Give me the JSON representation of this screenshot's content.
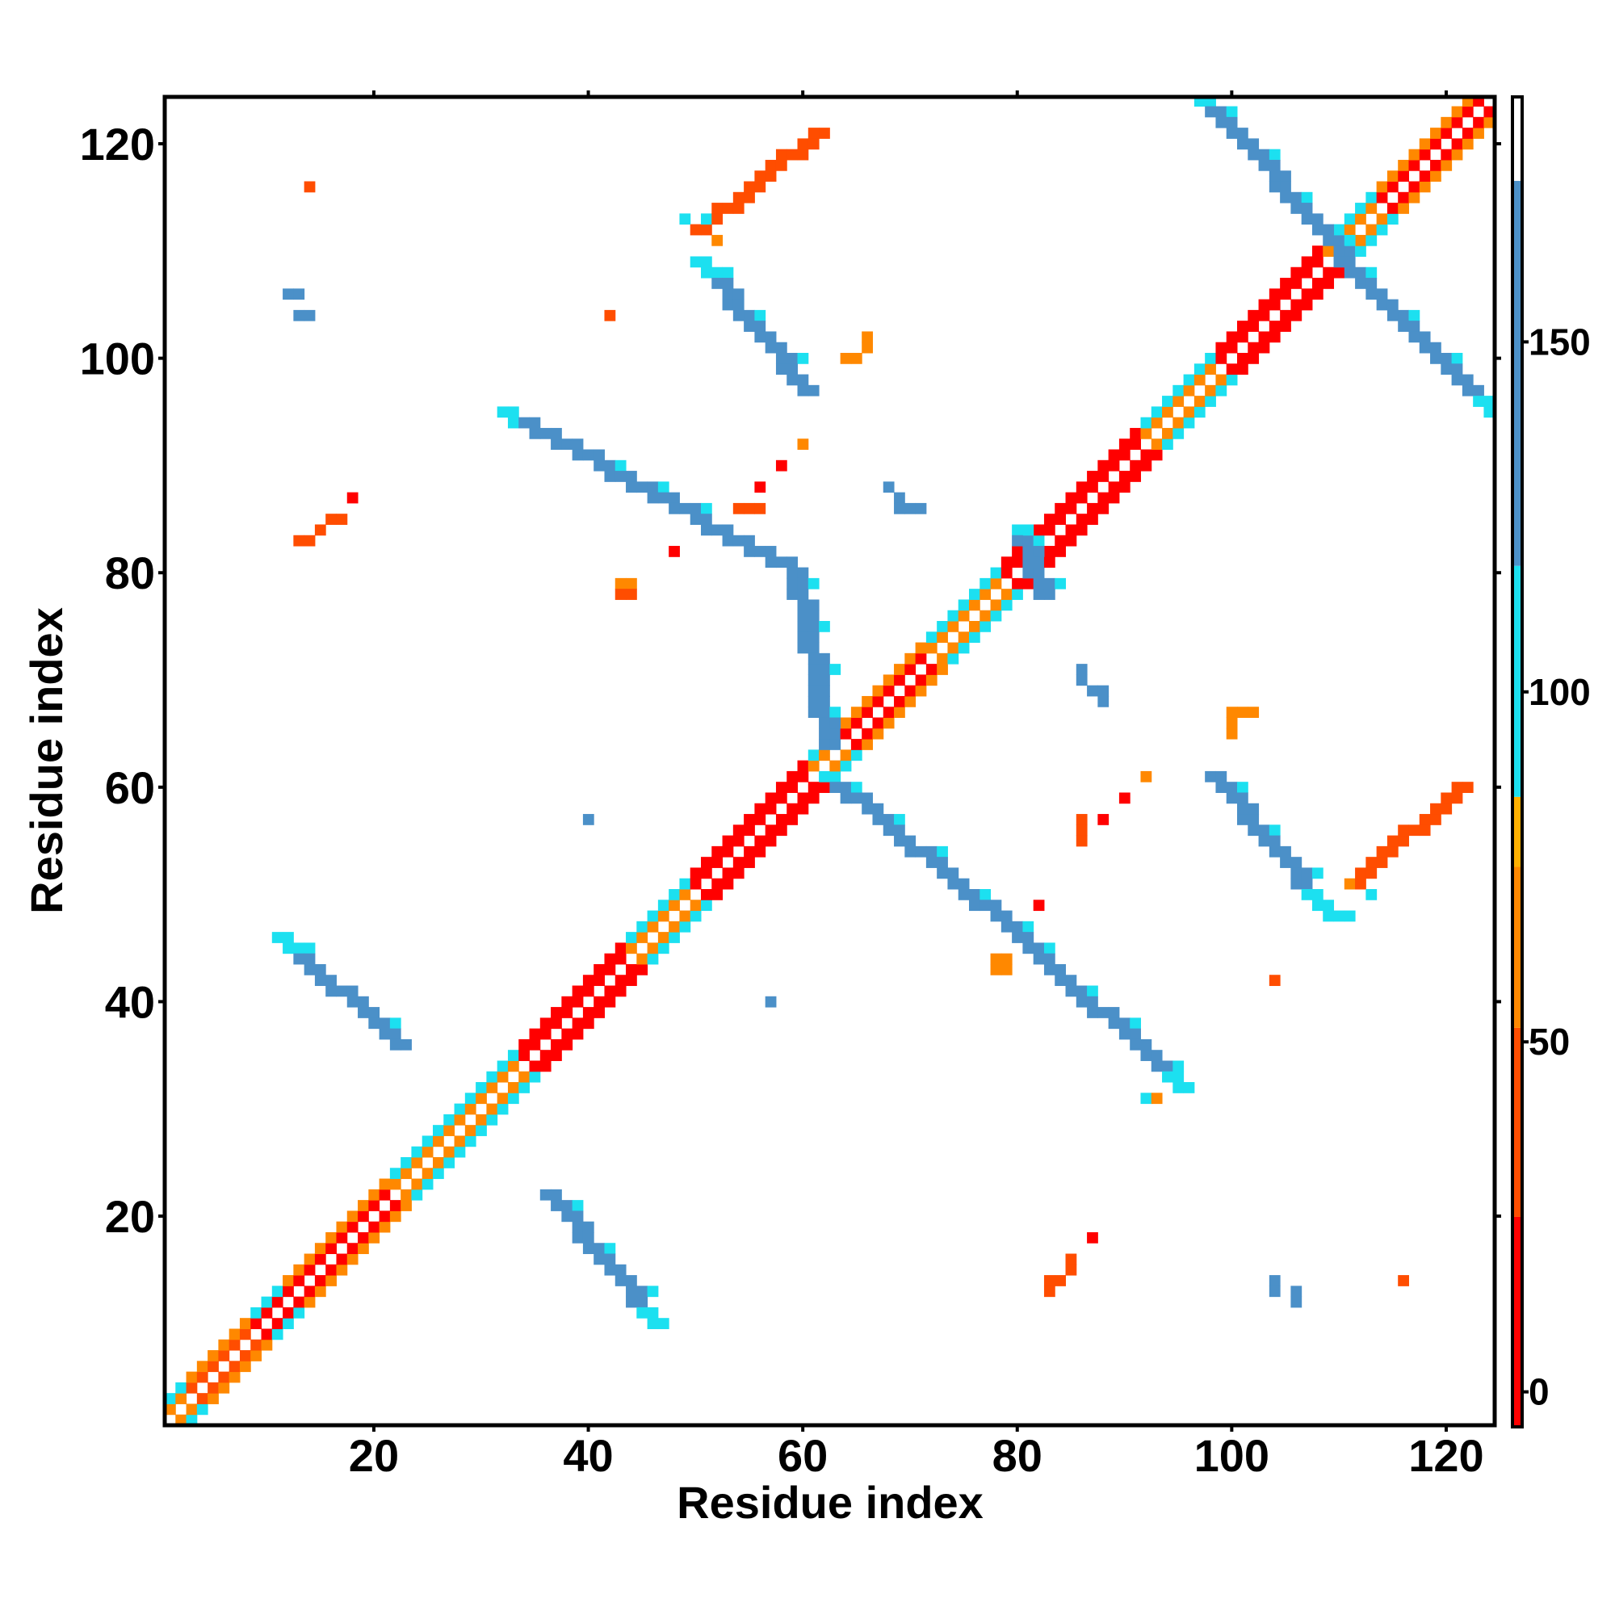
{
  "chart_data": {
    "type": "heatmap",
    "title": "",
    "xlabel": "Residue index",
    "ylabel": "Residue index",
    "xlim": [
      1,
      124
    ],
    "ylim": [
      1,
      124
    ],
    "x_ticks": [
      20,
      40,
      60,
      80,
      100,
      120
    ],
    "y_ticks": [
      20,
      40,
      60,
      80,
      100,
      120
    ],
    "grid": false,
    "legend": "none",
    "colorbar": {
      "placement": "right",
      "range": [
        -5,
        185
      ],
      "ticks": [
        0,
        50,
        100,
        150
      ],
      "bands": [
        {
          "from": -5,
          "to": 25,
          "color": "#ff0000"
        },
        {
          "from": 25,
          "to": 52,
          "color": "#ff4d00"
        },
        {
          "from": 52,
          "to": 75,
          "color": "#ff8800"
        },
        {
          "from": 75,
          "to": 85,
          "color": "#ffb000"
        },
        {
          "from": 85,
          "to": 118,
          "color": "#1ce0f0"
        },
        {
          "from": 118,
          "to": 173,
          "color": "#4b90c8"
        },
        {
          "from": 173,
          "to": 185,
          "color": "#ffffff"
        }
      ]
    },
    "category_colors": {
      "red": "#ff0000",
      "red_orange": "#ff4d00",
      "orange": "#ff8800",
      "cyan": "#1ce0f0",
      "blue": "#4b90c8"
    },
    "diagonal_band": {
      "range": [
        1,
        124
      ],
      "inner_offset": 1,
      "outer_offset": 2,
      "segments": [
        {
          "from": 1,
          "to": 3,
          "inner": "orange",
          "outer": "cyan"
        },
        {
          "from": 3,
          "to": 9,
          "inner": "red_orange",
          "outer": "orange"
        },
        {
          "from": 9,
          "to": 12,
          "inner": "red",
          "outer": "cyan"
        },
        {
          "from": 12,
          "to": 22,
          "inner": "red",
          "outer": "orange"
        },
        {
          "from": 22,
          "to": 34,
          "inner": "orange",
          "outer": "cyan"
        },
        {
          "from": 34,
          "to": 44,
          "inner": "red",
          "outer": "red"
        },
        {
          "from": 44,
          "to": 50,
          "inner": "orange",
          "outer": "cyan"
        },
        {
          "from": 50,
          "to": 61,
          "inner": "red",
          "outer": "red"
        },
        {
          "from": 61,
          "to": 64,
          "inner": "orange",
          "outer": "cyan"
        },
        {
          "from": 64,
          "to": 72,
          "inner": "red",
          "outer": "orange"
        },
        {
          "from": 72,
          "to": 79,
          "inner": "orange",
          "outer": "cyan"
        },
        {
          "from": 79,
          "to": 92,
          "inner": "red",
          "outer": "red"
        },
        {
          "from": 92,
          "to": 99,
          "inner": "orange",
          "outer": "cyan"
        },
        {
          "from": 99,
          "to": 109,
          "inner": "red",
          "outer": "red"
        },
        {
          "from": 109,
          "to": 114,
          "inner": "orange",
          "outer": "cyan"
        },
        {
          "from": 114,
          "to": 124,
          "inner": "red",
          "outer": "orange"
        }
      ]
    },
    "antiparallel_strands": [
      {
        "from": [
          11,
          46
        ],
        "to": [
          22,
          36
        ],
        "color": "blue",
        "width": 2,
        "cyan_start": 2
      },
      {
        "from": [
          36,
          22
        ],
        "to": [
          46,
          10
        ],
        "color": "blue",
        "width": 2,
        "cyan_end": 2
      },
      {
        "from": [
          32,
          95
        ],
        "to": [
          59,
          80
        ],
        "color": "blue",
        "width": 2,
        "cyan_start": 2
      },
      {
        "from": [
          59,
          80
        ],
        "to": [
          62,
          64
        ],
        "color": "blue",
        "width": 2
      },
      {
        "from": [
          50,
          109
        ],
        "to": [
          60,
          97
        ],
        "color": "blue",
        "width": 2,
        "cyan_start": 2
      },
      {
        "from": [
          62,
          61
        ],
        "to": [
          80,
          46
        ],
        "color": "blue",
        "width": 2,
        "cyan_start": 1
      },
      {
        "from": [
          80,
          46
        ],
        "to": [
          95,
          32
        ],
        "color": "blue",
        "width": 2,
        "cyan_end": 2
      },
      {
        "from": [
          80,
          84
        ],
        "to": [
          82,
          78
        ],
        "color": "blue",
        "width": 2,
        "cyan_start": 1
      },
      {
        "from": [
          97,
          124
        ],
        "to": [
          110,
          110
        ],
        "color": "blue",
        "width": 2,
        "cyan_start": 1
      },
      {
        "from": [
          110,
          109
        ],
        "to": [
          124,
          95
        ],
        "color": "blue",
        "width": 2,
        "cyan_end": 2
      },
      {
        "from": [
          98,
          61
        ],
        "to": [
          109,
          48
        ],
        "color": "blue",
        "width": 2,
        "cyan_end": 3
      }
    ],
    "parallel_strands": [
      {
        "from": [
          50,
          112
        ],
        "to": [
          61,
          121
        ],
        "color": "red_orange"
      },
      {
        "from": [
          111,
          51
        ],
        "to": [
          121,
          60
        ],
        "color": "red_orange"
      }
    ],
    "isolated_contacts": [
      {
        "x": 14,
        "y": 116,
        "color": "red_orange"
      },
      {
        "x": 12,
        "y": 106,
        "color": "blue"
      },
      {
        "x": 13,
        "y": 106,
        "color": "blue"
      },
      {
        "x": 13,
        "y": 104,
        "color": "blue"
      },
      {
        "x": 14,
        "y": 104,
        "color": "blue"
      },
      {
        "x": 18,
        "y": 87,
        "color": "red"
      },
      {
        "x": 16,
        "y": 85,
        "color": "red_orange"
      },
      {
        "x": 17,
        "y": 85,
        "color": "red_orange"
      },
      {
        "x": 15,
        "y": 84,
        "color": "red_orange"
      },
      {
        "x": 13,
        "y": 83,
        "color": "red_orange"
      },
      {
        "x": 14,
        "y": 83,
        "color": "red_orange"
      },
      {
        "x": 42,
        "y": 104,
        "color": "red_orange"
      },
      {
        "x": 51,
        "y": 113,
        "color": "cyan"
      },
      {
        "x": 49,
        "y": 113,
        "color": "cyan"
      },
      {
        "x": 52,
        "y": 111,
        "color": "orange"
      },
      {
        "x": 66,
        "y": 102,
        "color": "orange"
      },
      {
        "x": 66,
        "y": 101,
        "color": "orange"
      },
      {
        "x": 64,
        "y": 100,
        "color": "orange"
      },
      {
        "x": 65,
        "y": 100,
        "color": "orange"
      },
      {
        "x": 60,
        "y": 92,
        "color": "orange"
      },
      {
        "x": 58,
        "y": 90,
        "color": "red"
      },
      {
        "x": 56,
        "y": 88,
        "color": "red"
      },
      {
        "x": 54,
        "y": 86,
        "color": "red_orange"
      },
      {
        "x": 55,
        "y": 86,
        "color": "red_orange"
      },
      {
        "x": 56,
        "y": 86,
        "color": "red_orange"
      },
      {
        "x": 48,
        "y": 82,
        "color": "red"
      },
      {
        "x": 43,
        "y": 79,
        "color": "orange"
      },
      {
        "x": 44,
        "y": 79,
        "color": "orange"
      },
      {
        "x": 43,
        "y": 78,
        "color": "red_orange"
      },
      {
        "x": 44,
        "y": 78,
        "color": "red_orange"
      },
      {
        "x": 68,
        "y": 88,
        "color": "blue"
      },
      {
        "x": 69,
        "y": 87,
        "color": "blue"
      },
      {
        "x": 69,
        "y": 86,
        "color": "blue"
      },
      {
        "x": 70,
        "y": 86,
        "color": "blue"
      },
      {
        "x": 71,
        "y": 86,
        "color": "blue"
      },
      {
        "x": 86,
        "y": 71,
        "color": "blue"
      },
      {
        "x": 86,
        "y": 70,
        "color": "blue"
      },
      {
        "x": 87,
        "y": 69,
        "color": "blue"
      },
      {
        "x": 88,
        "y": 69,
        "color": "blue"
      },
      {
        "x": 88,
        "y": 68,
        "color": "blue"
      },
      {
        "x": 100,
        "y": 67,
        "color": "orange"
      },
      {
        "x": 101,
        "y": 67,
        "color": "orange"
      },
      {
        "x": 102,
        "y": 67,
        "color": "orange"
      },
      {
        "x": 100,
        "y": 66,
        "color": "orange"
      },
      {
        "x": 100,
        "y": 65,
        "color": "orange"
      },
      {
        "x": 92,
        "y": 61,
        "color": "orange"
      },
      {
        "x": 90,
        "y": 59,
        "color": "red"
      },
      {
        "x": 88,
        "y": 57,
        "color": "red"
      },
      {
        "x": 86,
        "y": 57,
        "color": "red_orange"
      },
      {
        "x": 86,
        "y": 56,
        "color": "red_orange"
      },
      {
        "x": 86,
        "y": 55,
        "color": "red_orange"
      },
      {
        "x": 82,
        "y": 49,
        "color": "red"
      },
      {
        "x": 40,
        "y": 57,
        "color": "blue"
      },
      {
        "x": 57,
        "y": 40,
        "color": "blue"
      },
      {
        "x": 104,
        "y": 42,
        "color": "red_orange"
      },
      {
        "x": 78,
        "y": 44,
        "color": "orange"
      },
      {
        "x": 79,
        "y": 44,
        "color": "orange"
      },
      {
        "x": 78,
        "y": 43,
        "color": "orange"
      },
      {
        "x": 79,
        "y": 43,
        "color": "orange"
      },
      {
        "x": 92,
        "y": 31,
        "color": "cyan"
      },
      {
        "x": 93,
        "y": 31,
        "color": "orange"
      },
      {
        "x": 87,
        "y": 18,
        "color": "red"
      },
      {
        "x": 85,
        "y": 16,
        "color": "red_orange"
      },
      {
        "x": 85,
        "y": 15,
        "color": "red_orange"
      },
      {
        "x": 84,
        "y": 14,
        "color": "red_orange"
      },
      {
        "x": 83,
        "y": 14,
        "color": "red_orange"
      },
      {
        "x": 83,
        "y": 13,
        "color": "red_orange"
      },
      {
        "x": 104,
        "y": 14,
        "color": "blue"
      },
      {
        "x": 104,
        "y": 13,
        "color": "blue"
      },
      {
        "x": 106,
        "y": 13,
        "color": "blue"
      },
      {
        "x": 106,
        "y": 12,
        "color": "blue"
      },
      {
        "x": 116,
        "y": 14,
        "color": "red_orange"
      },
      {
        "x": 111,
        "y": 51,
        "color": "orange"
      },
      {
        "x": 113,
        "y": 50,
        "color": "cyan"
      }
    ]
  }
}
